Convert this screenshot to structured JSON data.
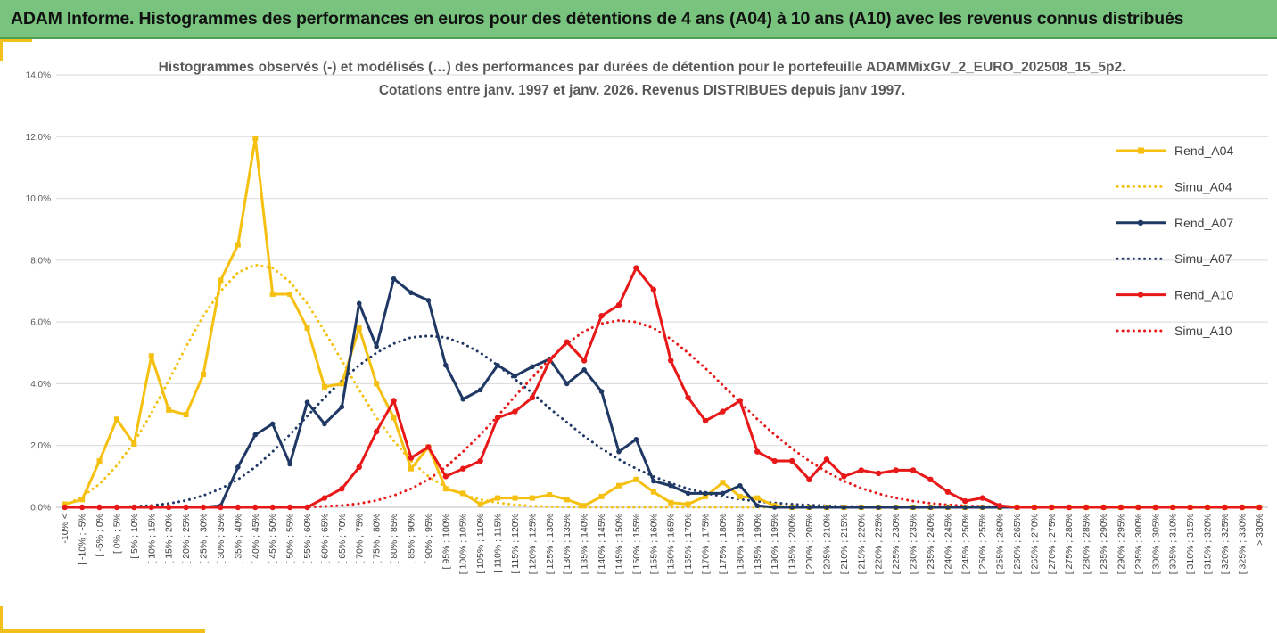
{
  "header": {
    "title": "ADAM Informe. Histogrammes des performances en euros pour des détentions de 4 ans (A04) à 10 ans (A10) avec les revenus connus distribués"
  },
  "chart_data": {
    "type": "line",
    "title": "Histogrammes observés (-) et modélisés (…) des performances par durées de détention pour le portefeuille ADAMMixGV_2_EURO_202508_15_5p2.",
    "subtitle": "Cotations entre janv. 1997 et janv. 2026. Revenus DISTRIBUES depuis janv 1997.",
    "ylim": [
      0,
      14
    ],
    "yticks": [
      0,
      2,
      4,
      6,
      8,
      10,
      12,
      14
    ],
    "ytick_labels": [
      "0,0%",
      "2,0%",
      "4,0%",
      "6,0%",
      "8,0%",
      "10,0%",
      "12,0%",
      "14,0%"
    ],
    "categories": [
      "-10% <",
      "[ -10% ; -5%",
      "[ -5% ; 0%",
      "[ 0% ; 5%",
      "[ 5% ; 10%",
      "[ 10% ; 15%",
      "[ 15% ; 20%",
      "[ 20% ; 25%",
      "[ 25% ; 30%",
      "[ 30% ; 35%",
      "[ 35% ; 40%",
      "[ 40% ; 45%",
      "[ 45% ; 50%",
      "[ 50% ; 55%",
      "[ 55% ; 60%",
      "[ 60% ; 65%",
      "[ 65% ; 70%",
      "[ 70% ; 75%",
      "[ 75% ; 80%",
      "[ 80% ; 85%",
      "[ 85% ; 90%",
      "[ 90% ; 95%",
      "[ 95% ; 100%",
      "[ 100% ; 105%",
      "[ 105% ; 110%",
      "[ 110% ; 115%",
      "[ 115% ; 120%",
      "[ 120% ; 125%",
      "[ 125% ; 130%",
      "[ 130% ; 135%",
      "[ 135% ; 140%",
      "[ 140% ; 145%",
      "[ 145% ; 150%",
      "[ 150% ; 155%",
      "[ 155% ; 160%",
      "[ 160% ; 165%",
      "[ 165% ; 170%",
      "[ 170% ; 175%",
      "[ 175% ; 180%",
      "[ 180% ; 185%",
      "[ 185% ; 190%",
      "[ 190% ; 195%",
      "[ 195% ; 200%",
      "[ 200% ; 205%",
      "[ 205% ; 210%",
      "[ 210% ; 215%",
      "[ 215% ; 220%",
      "[ 220% ; 225%",
      "[ 225% ; 230%",
      "[ 230% ; 235%",
      "[ 235% ; 240%",
      "[ 240% ; 245%",
      "[ 245% ; 250%",
      "[ 250% ; 255%",
      "[ 255% ; 260%",
      "[ 260% ; 265%",
      "[ 265% ; 270%",
      "[ 270% ; 275%",
      "[ 275% ; 280%",
      "[ 280% ; 285%",
      "[ 285% ; 290%",
      "[ 290% ; 295%",
      "[ 295% ; 300%",
      "[ 300% ; 305%",
      "[ 305% ; 310%",
      "[ 310% ; 315%",
      "[ 315% ; 320%",
      "[ 320% ; 325%",
      "[ 325% ; 330%",
      "> 330%"
    ],
    "series": [
      {
        "name": "Rend_A04",
        "style": "solid",
        "color": "#f5c010",
        "values": [
          0.1,
          0.25,
          1.5,
          2.85,
          2.05,
          4.9,
          3.15,
          3.0,
          4.3,
          7.35,
          8.5,
          11.95,
          6.9,
          6.9,
          5.8,
          3.9,
          4.0,
          5.8,
          4.0,
          2.9,
          1.25,
          1.95,
          0.6,
          0.45,
          0.1,
          0.3,
          0.3,
          0.3,
          0.4,
          0.25,
          0.05,
          0.35,
          0.7,
          0.9,
          0.5,
          0.15,
          0.1,
          0.35,
          0.8,
          0.35,
          0.3,
          0.05,
          0,
          0,
          0,
          0,
          0,
          0,
          0,
          0,
          0,
          0,
          0,
          0,
          0,
          0,
          0,
          0,
          0,
          0,
          0,
          0,
          0,
          0,
          0,
          0,
          0,
          0,
          0,
          0
        ]
      },
      {
        "name": "Simu_A04",
        "style": "dotted",
        "color": "#f5c010",
        "values": [
          0.05,
          0.35,
          0.75,
          1.35,
          2.1,
          3.05,
          4.1,
          5.2,
          6.2,
          7.0,
          7.6,
          7.85,
          7.75,
          7.3,
          6.6,
          5.7,
          4.75,
          3.8,
          2.9,
          2.15,
          1.5,
          1.0,
          0.65,
          0.4,
          0.25,
          0.15,
          0.08,
          0.04,
          0.02,
          0.01,
          0,
          0,
          0,
          0,
          0,
          0,
          0,
          0,
          0,
          0,
          0,
          0,
          0,
          0,
          0,
          0,
          0,
          0,
          0,
          0,
          0,
          0,
          0,
          0,
          0,
          0,
          0,
          0,
          0,
          0,
          0,
          0,
          0,
          0,
          0,
          0,
          0,
          0,
          0,
          0
        ]
      },
      {
        "name": "Rend_A07",
        "style": "solid",
        "color": "#1f3864",
        "values": [
          0,
          0,
          0,
          0,
          0,
          0,
          0,
          0,
          0,
          0.05,
          1.3,
          2.35,
          2.7,
          1.4,
          3.4,
          2.7,
          3.25,
          6.6,
          5.2,
          7.4,
          6.95,
          6.7,
          4.6,
          3.5,
          3.8,
          4.6,
          4.25,
          4.55,
          4.8,
          4.0,
          4.45,
          3.75,
          1.8,
          2.2,
          0.85,
          0.7,
          0.45,
          0.45,
          0.45,
          0.7,
          0.05,
          0,
          0,
          0,
          0,
          0,
          0,
          0,
          0,
          0,
          0,
          0,
          0,
          0,
          0,
          0,
          0,
          0,
          0,
          0,
          0,
          0,
          0,
          0,
          0,
          0,
          0,
          0,
          0,
          0
        ]
      },
      {
        "name": "Simu_A07",
        "style": "dotted",
        "color": "#1f3864",
        "values": [
          0,
          0,
          0,
          0.01,
          0.03,
          0.06,
          0.12,
          0.22,
          0.38,
          0.6,
          0.9,
          1.3,
          1.8,
          2.35,
          2.95,
          3.55,
          4.1,
          4.6,
          5.0,
          5.3,
          5.5,
          5.55,
          5.5,
          5.3,
          5.0,
          4.6,
          4.15,
          3.7,
          3.2,
          2.75,
          2.3,
          1.9,
          1.55,
          1.25,
          1.0,
          0.78,
          0.6,
          0.46,
          0.35,
          0.26,
          0.19,
          0.14,
          0.1,
          0.07,
          0.05,
          0.03,
          0.02,
          0.01,
          0.01,
          0,
          0,
          0,
          0,
          0,
          0,
          0,
          0,
          0,
          0,
          0,
          0,
          0,
          0,
          0,
          0,
          0,
          0,
          0,
          0,
          0
        ]
      },
      {
        "name": "Rend_A10",
        "style": "solid",
        "color": "#e81818",
        "values": [
          0,
          0,
          0,
          0,
          0,
          0,
          0,
          0,
          0,
          0,
          0,
          0,
          0,
          0,
          0,
          0.3,
          0.6,
          1.3,
          2.45,
          3.45,
          1.6,
          1.95,
          1.0,
          1.25,
          1.5,
          2.9,
          3.1,
          3.55,
          4.75,
          5.35,
          4.75,
          6.2,
          6.55,
          7.75,
          7.05,
          4.75,
          3.55,
          2.8,
          3.1,
          3.45,
          1.8,
          1.5,
          1.5,
          0.9,
          1.55,
          1.0,
          1.2,
          1.1,
          1.2,
          1.2,
          0.9,
          0.5,
          0.2,
          0.3,
          0.05,
          0,
          0,
          0,
          0,
          0,
          0,
          0,
          0,
          0,
          0,
          0,
          0,
          0,
          0,
          0
        ]
      },
      {
        "name": "Simu_A10",
        "style": "dotted",
        "color": "#e81818",
        "values": [
          0,
          0,
          0,
          0,
          0,
          0,
          0,
          0,
          0,
          0,
          0,
          0,
          0,
          0,
          0.01,
          0.03,
          0.06,
          0.12,
          0.22,
          0.38,
          0.6,
          0.9,
          1.3,
          1.8,
          2.35,
          2.95,
          3.6,
          4.2,
          4.8,
          5.3,
          5.7,
          5.95,
          6.05,
          6.0,
          5.8,
          5.45,
          5.0,
          4.5,
          3.95,
          3.4,
          2.85,
          2.35,
          1.9,
          1.5,
          1.15,
          0.85,
          0.62,
          0.44,
          0.3,
          0.2,
          0.13,
          0.08,
          0.05,
          0.03,
          0.02,
          0.01,
          0,
          0,
          0,
          0,
          0,
          0,
          0,
          0,
          0,
          0,
          0,
          0,
          0,
          0
        ]
      }
    ],
    "legend_position": "right"
  }
}
